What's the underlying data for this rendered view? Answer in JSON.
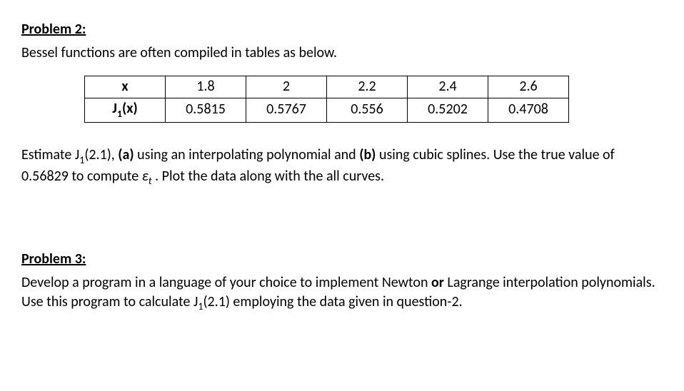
{
  "problem2": {
    "heading": "Problem 2:",
    "intro": "Bessel functions are often compiled in tables as below.",
    "table": {
      "row1_label": "x",
      "row2_label_prefix": "J",
      "row2_label_sub": "1",
      "row2_label_suffix": "(x)",
      "cols": [
        "1.8",
        "2",
        "2.2",
        "2.4",
        "2.6"
      ],
      "vals": [
        "0.5815",
        "0.5767",
        "0.556",
        "0.5202",
        "0.4708"
      ]
    },
    "body": {
      "t1": "Estimate J",
      "sub1": "1",
      "t2": "(2.1), ",
      "bold_a": "(a)",
      "t3": " using an interpolating polynomial and ",
      "bold_b": "(b)",
      "t4": " using cubic splines. Use the true value of 0.56829 to compute ",
      "eps": "ε",
      "eps_sub": "t",
      "t5": " . Plot the data along with the all curves."
    }
  },
  "problem3": {
    "heading": "Problem 3:",
    "body": {
      "t1": "Develop a program in a language of your choice to implement Newton ",
      "bold_or": "or",
      "t2": " Lagrange interpolation polynomials. Use this program to calculate J",
      "sub1": "1",
      "t3": "(2.1) employing the data given in question-2."
    }
  }
}
